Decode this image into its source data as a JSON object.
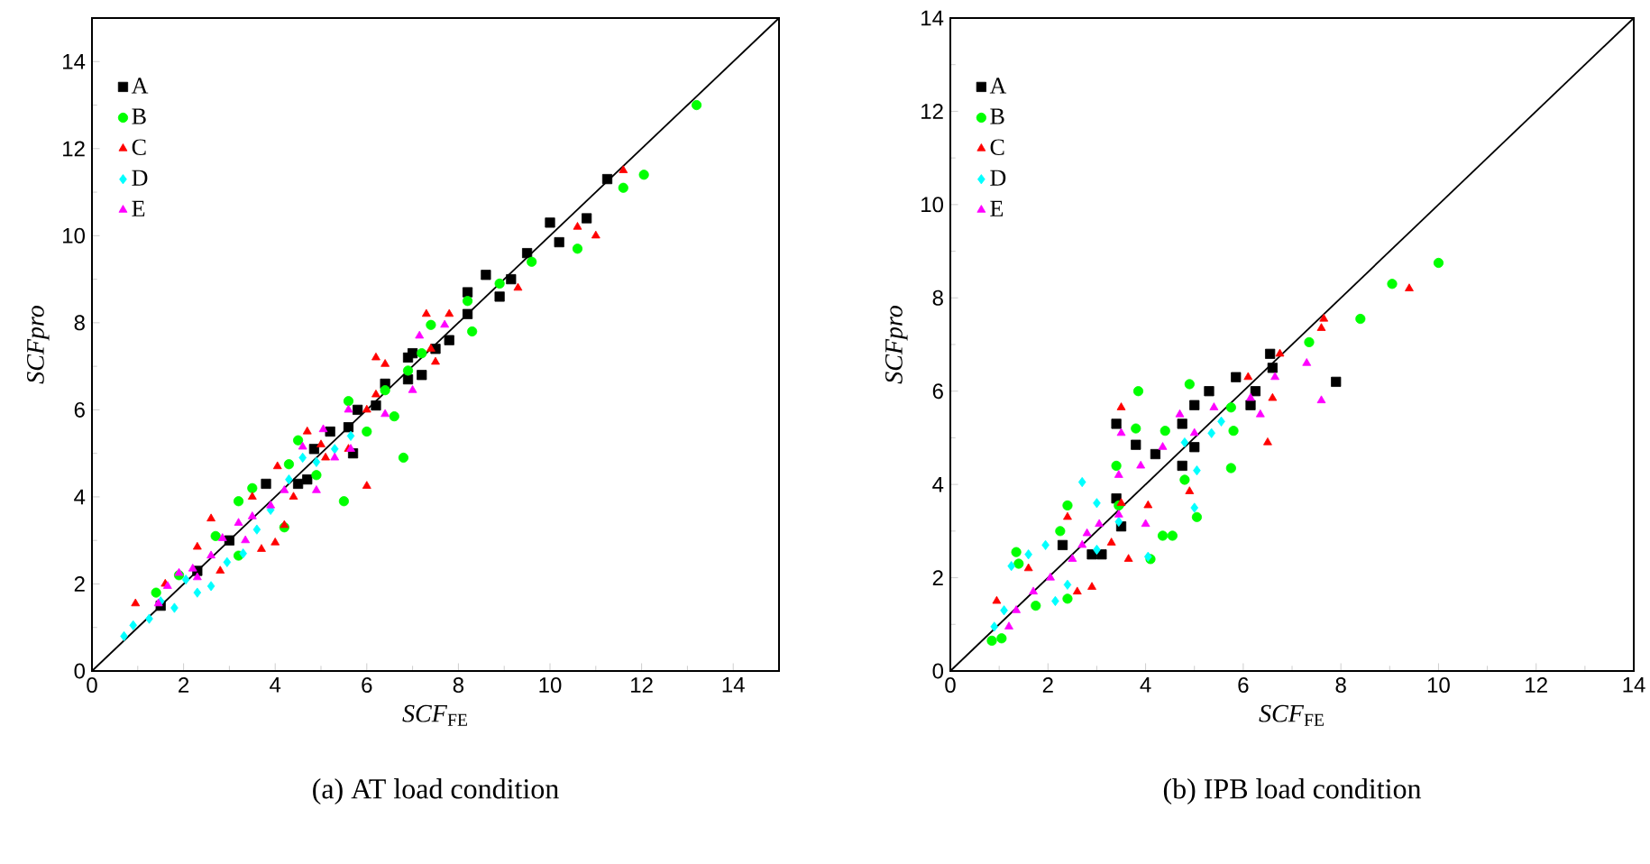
{
  "chart_data": [
    {
      "type": "scatter",
      "title": "(a) AT load condition",
      "xlabel": "*SCF*$_{FE}$",
      "ylabel": "*SCFpro*",
      "xlim": [
        0,
        15
      ],
      "ylim": [
        0,
        15
      ],
      "xticks": [
        0,
        2,
        4,
        6,
        8,
        10,
        12,
        14
      ],
      "yticks": [
        0,
        2,
        4,
        6,
        8,
        10,
        12,
        14
      ],
      "legend": "top left",
      "grid": false,
      "series": [
        {
          "name": "A",
          "color": "#000000",
          "marker": "square",
          "x": [
            11.25,
            10.8,
            10.0,
            10.2,
            9.5,
            9.15,
            8.9,
            8.6,
            8.2,
            8.2,
            7.8,
            7.5,
            6.9,
            7.0,
            7.2,
            6.9,
            6.4,
            6.2,
            5.8,
            5.6,
            5.2,
            4.85,
            5.7,
            4.5,
            3.8,
            4.7,
            3.0,
            2.3,
            1.5
          ],
          "values": [
            11.3,
            10.4,
            10.3,
            9.85,
            9.6,
            9.0,
            8.6,
            9.1,
            8.7,
            8.2,
            7.6,
            7.4,
            7.2,
            7.3,
            6.8,
            6.7,
            6.6,
            6.1,
            6.0,
            5.6,
            5.5,
            5.1,
            5.0,
            4.3,
            4.3,
            4.4,
            3.0,
            2.3,
            1.5
          ]
        },
        {
          "name": "B",
          "color": "#00ff00",
          "marker": "circle",
          "x": [
            13.2,
            12.05,
            11.6,
            10.6,
            9.6,
            8.9,
            8.2,
            8.3,
            7.4,
            7.2,
            6.9,
            6.8,
            6.4,
            6.0,
            5.6,
            6.6,
            5.5,
            4.9,
            4.5,
            4.3,
            4.2,
            3.5,
            3.2,
            2.7,
            3.2,
            1.4,
            1.9
          ],
          "values": [
            13.0,
            11.4,
            11.1,
            9.7,
            9.4,
            8.9,
            8.5,
            7.8,
            7.95,
            7.3,
            6.9,
            4.9,
            6.45,
            5.5,
            6.2,
            5.85,
            3.9,
            4.5,
            5.3,
            4.75,
            3.3,
            4.2,
            3.9,
            3.1,
            2.65,
            1.8,
            2.2
          ]
        },
        {
          "name": "C",
          "color": "#ff0000",
          "marker": "triangle",
          "x": [
            11.6,
            10.6,
            11.0,
            9.3,
            7.3,
            7.8,
            7.4,
            7.5,
            6.2,
            6.4,
            6.0,
            6.2,
            6.0,
            5.6,
            5.0,
            4.7,
            5.1,
            4.05,
            4.4,
            3.5,
            4.2,
            4.0,
            3.7,
            2.6,
            2.8,
            2.3,
            1.6,
            0.95
          ],
          "values": [
            11.5,
            10.2,
            10.0,
            8.8,
            8.2,
            8.2,
            7.4,
            7.1,
            7.2,
            7.05,
            6.0,
            6.35,
            4.25,
            5.1,
            5.2,
            5.5,
            4.9,
            4.7,
            4.0,
            4.0,
            3.35,
            2.95,
            2.8,
            3.5,
            2.3,
            2.85,
            2.0,
            1.55
          ]
        },
        {
          "name": "D",
          "color": "#00ffff",
          "marker": "diamond",
          "x": [
            0.7,
            0.9,
            1.25,
            1.8,
            2.3,
            2.6,
            2.95,
            3.3,
            3.6,
            3.9,
            4.3,
            4.6,
            4.9,
            5.3,
            5.65,
            2.05,
            1.5
          ],
          "values": [
            0.8,
            1.05,
            1.2,
            1.45,
            1.8,
            1.95,
            2.5,
            2.7,
            3.25,
            3.7,
            4.4,
            4.9,
            4.8,
            5.1,
            5.4,
            2.1,
            1.6
          ]
        },
        {
          "name": "E",
          "color": "#ff00ff",
          "marker": "triangle",
          "x": [
            7.7,
            7.15,
            7.0,
            6.4,
            5.6,
            5.05,
            4.6,
            5.65,
            4.9,
            5.3,
            4.2,
            3.9,
            3.5,
            3.2,
            2.85,
            2.6,
            2.2,
            1.9,
            1.65,
            1.45,
            2.3,
            3.35
          ],
          "values": [
            7.95,
            7.7,
            6.45,
            5.9,
            6.0,
            5.55,
            5.15,
            5.1,
            4.15,
            4.9,
            4.15,
            3.8,
            3.55,
            3.4,
            3.05,
            2.65,
            2.35,
            2.25,
            1.95,
            1.55,
            2.15,
            3.0
          ]
        },
        {
          "type": "line",
          "color": "#000000",
          "marker": "none",
          "x": [
            0,
            15
          ],
          "values": [
            0,
            15
          ]
        }
      ]
    },
    {
      "type": "scatter",
      "title": "(b) IPB load condition",
      "xlabel": "*SCF*$_{FE}$",
      "ylabel": "*SCFpro*",
      "xlim": [
        0,
        14
      ],
      "ylim": [
        0,
        14
      ],
      "xticks": [
        0,
        2,
        4,
        6,
        8,
        10,
        12,
        14
      ],
      "yticks": [
        0,
        2,
        4,
        6,
        8,
        10,
        12,
        14
      ],
      "legend": "top left",
      "grid": false,
      "series": [
        {
          "name": "A",
          "color": "#000000",
          "marker": "square",
          "x": [
            6.55,
            6.6,
            7.9,
            5.85,
            6.25,
            6.15,
            5.3,
            5.0,
            4.75,
            3.4,
            3.8,
            5.0,
            4.2,
            4.75,
            3.4,
            3.5,
            3.1,
            2.9,
            2.3
          ],
          "values": [
            6.8,
            6.5,
            6.2,
            6.3,
            6.0,
            5.7,
            6.0,
            5.7,
            5.3,
            5.3,
            4.85,
            4.8,
            4.65,
            4.4,
            3.7,
            3.1,
            2.5,
            2.5,
            2.7
          ]
        },
        {
          "name": "B",
          "color": "#00ff00",
          "marker": "circle",
          "x": [
            10.0,
            9.05,
            8.4,
            7.35,
            4.9,
            3.85,
            5.75,
            5.8,
            5.75,
            4.4,
            3.8,
            3.4,
            4.8,
            5.05,
            4.35,
            4.55,
            4.1,
            2.4,
            2.25,
            1.35,
            1.4,
            2.4,
            1.75,
            0.85,
            1.05,
            3.45
          ],
          "values": [
            8.75,
            8.3,
            7.55,
            7.05,
            6.15,
            6.0,
            5.65,
            5.15,
            4.35,
            5.15,
            5.2,
            4.4,
            4.1,
            3.3,
            2.9,
            2.9,
            2.4,
            3.55,
            3.0,
            2.55,
            2.3,
            1.55,
            1.4,
            0.65,
            0.7,
            3.55
          ]
        },
        {
          "name": "C",
          "color": "#ff0000",
          "marker": "triangle",
          "x": [
            9.4,
            7.65,
            7.6,
            6.75,
            6.1,
            6.6,
            6.5,
            3.5,
            4.9,
            3.65,
            2.9,
            2.6,
            2.4,
            3.5,
            4.05,
            0.95,
            1.6,
            3.3
          ],
          "values": [
            8.2,
            7.55,
            7.35,
            6.8,
            6.3,
            5.85,
            4.9,
            5.65,
            3.85,
            2.4,
            1.8,
            1.7,
            3.3,
            3.6,
            3.55,
            1.5,
            2.2,
            2.75
          ]
        },
        {
          "name": "D",
          "color": "#00ffff",
          "marker": "diamond",
          "x": [
            2.7,
            1.25,
            1.6,
            1.95,
            0.9,
            1.1,
            2.15,
            2.4,
            3.0,
            4.05,
            5.0,
            5.05,
            5.35,
            5.55,
            4.8,
            3.45,
            3.0
          ],
          "values": [
            4.05,
            2.25,
            2.5,
            2.7,
            0.95,
            1.3,
            1.5,
            1.85,
            2.6,
            2.45,
            3.5,
            4.3,
            5.1,
            5.35,
            4.9,
            3.2,
            3.6
          ]
        },
        {
          "name": "E",
          "color": "#ff00ff",
          "marker": "triangle",
          "x": [
            7.3,
            7.6,
            6.65,
            6.35,
            6.15,
            5.4,
            4.7,
            5.0,
            4.35,
            3.9,
            3.45,
            3.5,
            4.0,
            3.45,
            3.05,
            2.7,
            2.5,
            2.05,
            1.7,
            1.35,
            1.2,
            2.8
          ],
          "values": [
            6.6,
            5.8,
            6.3,
            5.5,
            5.85,
            5.65,
            5.5,
            5.1,
            4.8,
            4.4,
            4.2,
            5.1,
            3.15,
            3.35,
            3.15,
            2.7,
            2.4,
            2.0,
            1.7,
            1.3,
            0.95,
            2.95
          ]
        },
        {
          "type": "line",
          "color": "#000000",
          "marker": "none",
          "x": [
            0,
            14
          ],
          "values": [
            0,
            14
          ]
        }
      ]
    }
  ]
}
